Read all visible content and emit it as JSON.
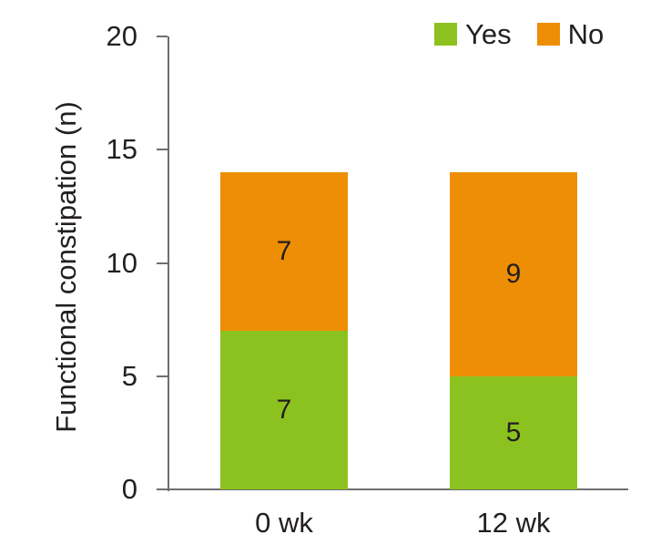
{
  "chart_data": {
    "type": "bar",
    "stacked": true,
    "title": "",
    "xlabel": "",
    "ylabel": "Functional constipation (n)",
    "categories": [
      "0 wk",
      "12 wk"
    ],
    "series": [
      {
        "name": "Yes",
        "color": "#8cc21f",
        "values": [
          7,
          5
        ]
      },
      {
        "name": "No",
        "color": "#ee8e05",
        "values": [
          7,
          9
        ]
      }
    ],
    "totals": [
      14,
      14
    ],
    "ylim": [
      0,
      20
    ],
    "yticks": [
      0,
      5,
      10,
      15,
      20
    ],
    "grid": false,
    "legend_position": "top-right",
    "bar_value_labels": [
      "7",
      "7",
      "5",
      "9"
    ]
  },
  "legend": {
    "items": [
      {
        "label": "Yes",
        "color": "#8cc21f"
      },
      {
        "label": "No",
        "color": "#ee8e05"
      }
    ]
  },
  "colors": {
    "yes_green": "#8cc21f",
    "no_orange": "#ee8e05",
    "axis_gray": "#6e6f71",
    "text_dark": "#231f20",
    "background": "#ffffff"
  }
}
